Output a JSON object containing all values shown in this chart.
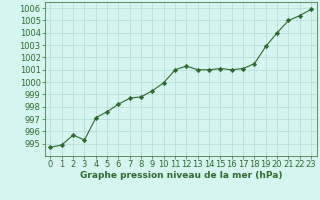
{
  "x": [
    0,
    1,
    2,
    3,
    4,
    5,
    6,
    7,
    8,
    9,
    10,
    11,
    12,
    13,
    14,
    15,
    16,
    17,
    18,
    19,
    20,
    21,
    22,
    23
  ],
  "y": [
    994.7,
    994.9,
    995.7,
    995.3,
    997.1,
    997.6,
    998.2,
    998.7,
    998.8,
    999.3,
    999.95,
    1001.0,
    1001.3,
    1001.0,
    1001.0,
    1001.1,
    1001.0,
    1001.1,
    1001.5,
    1002.9,
    1004.0,
    1005.0,
    1005.4,
    1005.9
  ],
  "line_color": "#2d6a2d",
  "marker": "D",
  "marker_size": 2.2,
  "bg_color": "#d6f5f0",
  "grid_color": "#b8ddd8",
  "xlabel": "Graphe pression niveau de la mer (hPa)",
  "xlabel_color": "#2d6a2d",
  "tick_color": "#2d6a2d",
  "ylim": [
    994.0,
    1006.5
  ],
  "xlim": [
    -0.5,
    23.5
  ],
  "yticks": [
    995,
    996,
    997,
    998,
    999,
    1000,
    1001,
    1002,
    1003,
    1004,
    1005,
    1006
  ],
  "xticks": [
    0,
    1,
    2,
    3,
    4,
    5,
    6,
    7,
    8,
    9,
    10,
    11,
    12,
    13,
    14,
    15,
    16,
    17,
    18,
    19,
    20,
    21,
    22,
    23
  ],
  "figsize": [
    3.2,
    2.0
  ],
  "dpi": 100,
  "tick_fontsize": 6.0,
  "xlabel_fontsize": 6.5,
  "linewidth": 0.8
}
